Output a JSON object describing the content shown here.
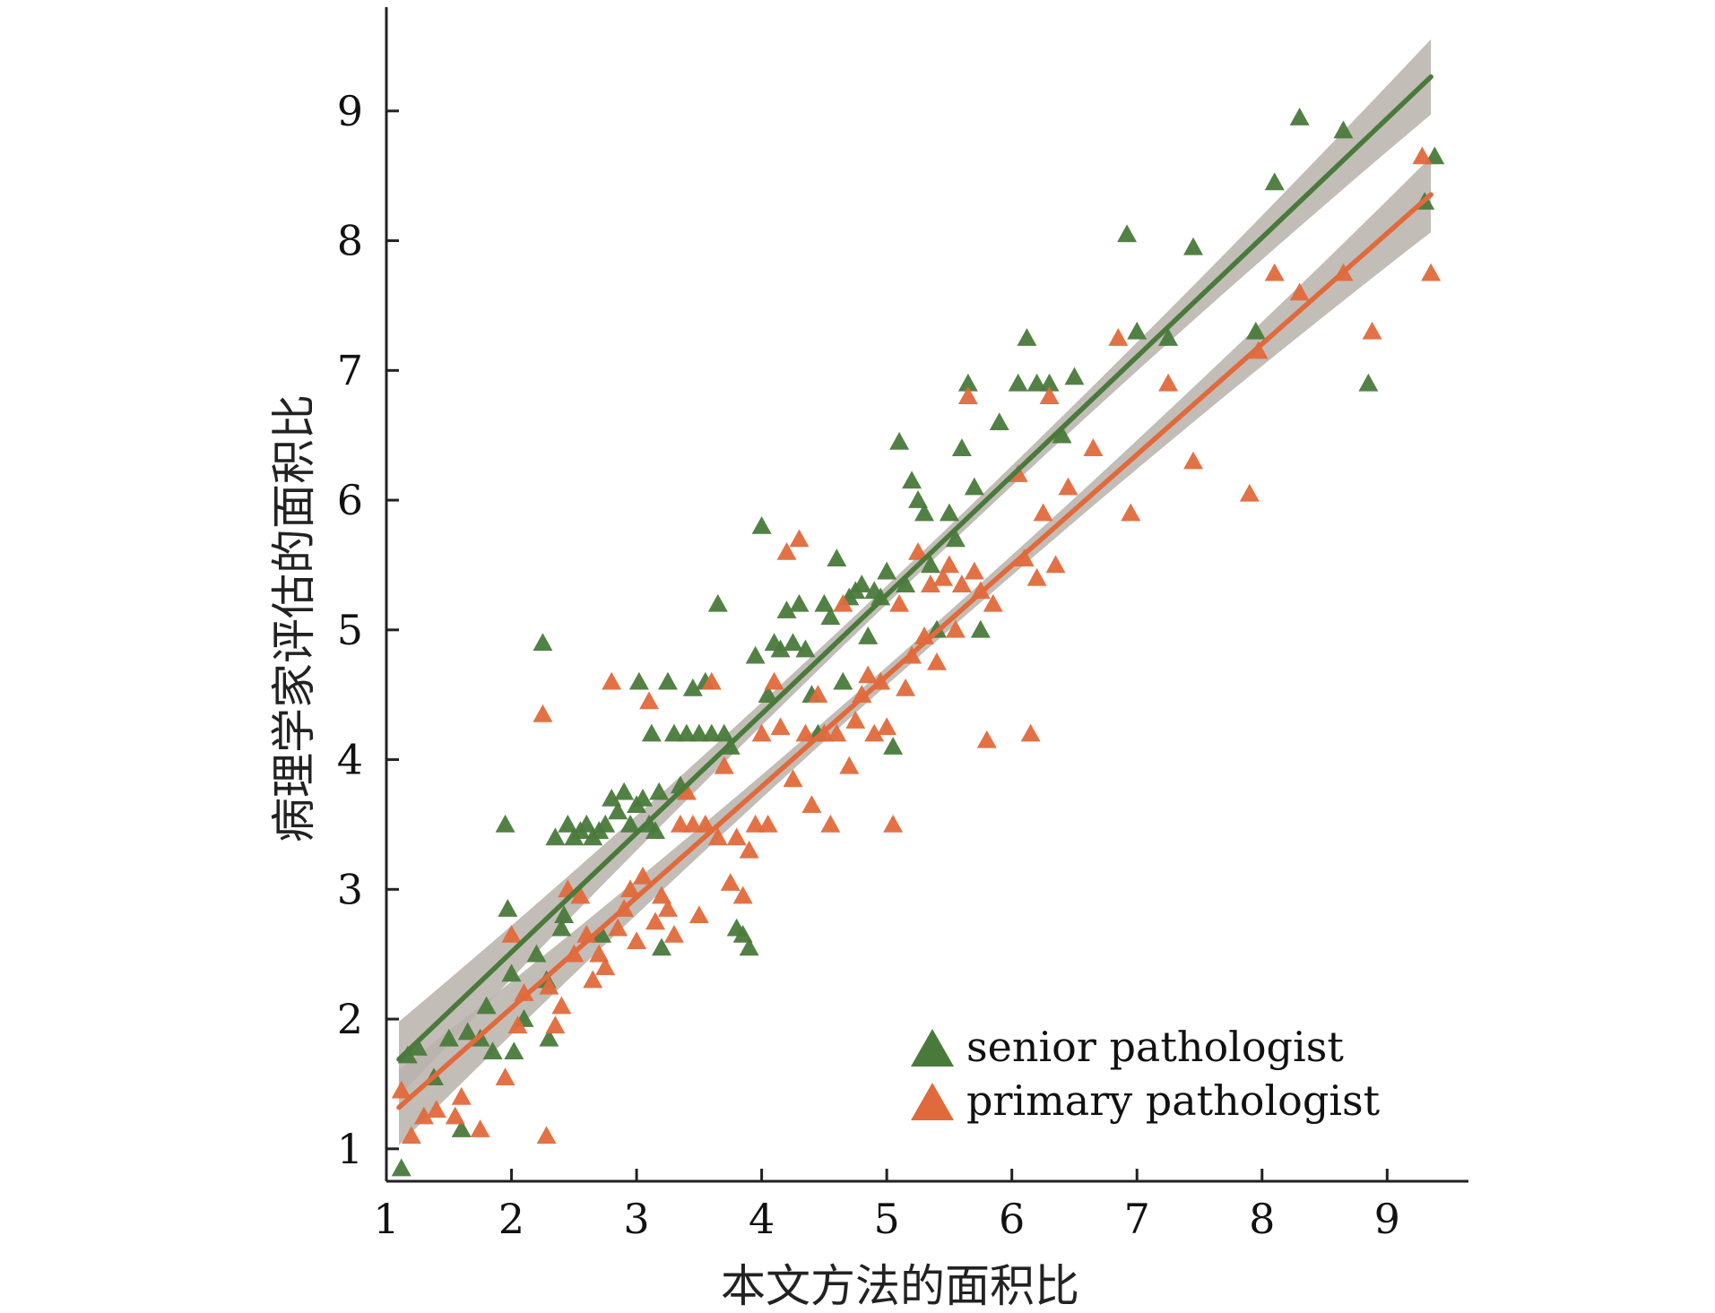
{
  "chart_data": {
    "type": "scatter",
    "title": "",
    "xlabel": "本文方法的面积比",
    "ylabel": "病理学家评估的面积比",
    "xlim": [
      1,
      9.65
    ],
    "ylim": [
      0.75,
      9.8
    ],
    "xticks": [
      "1",
      "2",
      "3",
      "4",
      "5",
      "6",
      "7",
      "8",
      "9"
    ],
    "yticks": [
      "1",
      "2",
      "3",
      "4",
      "5",
      "6",
      "7",
      "8",
      "9"
    ],
    "grid": false,
    "legend_position": "bottom-right",
    "series": [
      {
        "name": "senior pathologist",
        "color": "#4a7a3b",
        "marker": "triangle",
        "fit": {
          "slope": 0.918,
          "intercept": 0.68,
          "x_range": [
            1.1,
            9.35
          ]
        },
        "points": [
          [
            1.12,
            0.85
          ],
          [
            1.17,
            1.72
          ],
          [
            1.25,
            1.78
          ],
          [
            1.38,
            1.55
          ],
          [
            1.5,
            1.85
          ],
          [
            1.6,
            1.15
          ],
          [
            1.65,
            1.9
          ],
          [
            1.75,
            1.85
          ],
          [
            1.8,
            2.1
          ],
          [
            1.85,
            1.75
          ],
          [
            1.95,
            3.5
          ],
          [
            1.97,
            2.85
          ],
          [
            2.0,
            2.35
          ],
          [
            2.02,
            1.75
          ],
          [
            2.1,
            2.0
          ],
          [
            2.2,
            2.5
          ],
          [
            2.25,
            4.9
          ],
          [
            2.28,
            2.3
          ],
          [
            2.3,
            1.85
          ],
          [
            2.35,
            3.4
          ],
          [
            2.4,
            2.7
          ],
          [
            2.42,
            2.8
          ],
          [
            2.45,
            3.5
          ],
          [
            2.5,
            3.4
          ],
          [
            2.55,
            3.45
          ],
          [
            2.6,
            3.5
          ],
          [
            2.65,
            3.4
          ],
          [
            2.7,
            3.45
          ],
          [
            2.72,
            2.65
          ],
          [
            2.75,
            3.5
          ],
          [
            2.8,
            3.7
          ],
          [
            2.85,
            3.6
          ],
          [
            2.9,
            3.75
          ],
          [
            2.95,
            3.5
          ],
          [
            3.0,
            3.65
          ],
          [
            3.02,
            4.6
          ],
          [
            3.05,
            3.7
          ],
          [
            3.1,
            3.5
          ],
          [
            3.12,
            4.2
          ],
          [
            3.15,
            3.45
          ],
          [
            3.18,
            3.75
          ],
          [
            3.2,
            2.55
          ],
          [
            3.25,
            4.6
          ],
          [
            3.3,
            4.2
          ],
          [
            3.35,
            3.8
          ],
          [
            3.4,
            4.2
          ],
          [
            3.45,
            4.55
          ],
          [
            3.5,
            4.2
          ],
          [
            3.55,
            4.6
          ],
          [
            3.6,
            4.2
          ],
          [
            3.65,
            5.2
          ],
          [
            3.7,
            4.2
          ],
          [
            3.75,
            4.1
          ],
          [
            3.8,
            2.7
          ],
          [
            3.85,
            2.65
          ],
          [
            3.9,
            2.55
          ],
          [
            3.95,
            4.8
          ],
          [
            4.0,
            5.8
          ],
          [
            4.05,
            4.5
          ],
          [
            4.1,
            4.9
          ],
          [
            4.15,
            4.85
          ],
          [
            4.2,
            5.15
          ],
          [
            4.25,
            4.9
          ],
          [
            4.3,
            5.2
          ],
          [
            4.35,
            4.85
          ],
          [
            4.4,
            4.5
          ],
          [
            4.45,
            4.2
          ],
          [
            4.5,
            5.2
          ],
          [
            4.55,
            5.1
          ],
          [
            4.6,
            5.55
          ],
          [
            4.65,
            4.6
          ],
          [
            4.7,
            5.25
          ],
          [
            4.75,
            5.3
          ],
          [
            4.8,
            5.35
          ],
          [
            4.85,
            4.95
          ],
          [
            4.9,
            5.3
          ],
          [
            4.95,
            5.25
          ],
          [
            5.0,
            5.45
          ],
          [
            5.05,
            4.1
          ],
          [
            5.1,
            6.45
          ],
          [
            5.15,
            5.35
          ],
          [
            5.2,
            6.15
          ],
          [
            5.25,
            6.0
          ],
          [
            5.3,
            5.9
          ],
          [
            5.35,
            5.5
          ],
          [
            5.4,
            5.0
          ],
          [
            5.5,
            5.9
          ],
          [
            5.55,
            5.7
          ],
          [
            5.6,
            6.4
          ],
          [
            5.65,
            6.9
          ],
          [
            5.7,
            6.1
          ],
          [
            5.75,
            5.0
          ],
          [
            5.9,
            6.6
          ],
          [
            6.05,
            6.9
          ],
          [
            6.12,
            7.25
          ],
          [
            6.2,
            6.9
          ],
          [
            6.3,
            6.9
          ],
          [
            6.4,
            6.5
          ],
          [
            6.5,
            6.95
          ],
          [
            6.92,
            8.05
          ],
          [
            7.0,
            7.3
          ],
          [
            7.25,
            7.25
          ],
          [
            7.45,
            7.95
          ],
          [
            7.95,
            7.3
          ],
          [
            8.1,
            8.45
          ],
          [
            8.3,
            8.95
          ],
          [
            8.65,
            8.85
          ],
          [
            8.85,
            6.9
          ],
          [
            9.3,
            8.3
          ],
          [
            9.38,
            8.65
          ]
        ]
      },
      {
        "name": "primary pathologist",
        "color": "#e06a3c",
        "marker": "triangle",
        "fit": {
          "slope": 0.853,
          "intercept": 0.38,
          "x_range": [
            1.1,
            9.35
          ]
        },
        "points": [
          [
            1.12,
            1.45
          ],
          [
            1.2,
            1.1
          ],
          [
            1.3,
            1.25
          ],
          [
            1.4,
            1.3
          ],
          [
            1.55,
            1.25
          ],
          [
            1.6,
            1.4
          ],
          [
            1.75,
            1.15
          ],
          [
            1.95,
            1.55
          ],
          [
            2.0,
            2.65
          ],
          [
            2.05,
            1.95
          ],
          [
            2.1,
            2.2
          ],
          [
            2.25,
            4.35
          ],
          [
            2.28,
            1.1
          ],
          [
            2.3,
            2.25
          ],
          [
            2.35,
            1.95
          ],
          [
            2.4,
            2.1
          ],
          [
            2.45,
            3.0
          ],
          [
            2.5,
            2.5
          ],
          [
            2.55,
            2.95
          ],
          [
            2.6,
            2.65
          ],
          [
            2.65,
            2.3
          ],
          [
            2.7,
            2.5
          ],
          [
            2.75,
            2.4
          ],
          [
            2.8,
            4.6
          ],
          [
            2.85,
            2.7
          ],
          [
            2.9,
            2.85
          ],
          [
            2.95,
            3.0
          ],
          [
            3.0,
            2.6
          ],
          [
            3.05,
            3.1
          ],
          [
            3.1,
            4.45
          ],
          [
            3.15,
            2.75
          ],
          [
            3.2,
            2.95
          ],
          [
            3.25,
            2.85
          ],
          [
            3.3,
            2.65
          ],
          [
            3.35,
            3.5
          ],
          [
            3.4,
            3.75
          ],
          [
            3.45,
            3.5
          ],
          [
            3.5,
            2.8
          ],
          [
            3.55,
            3.5
          ],
          [
            3.6,
            4.6
          ],
          [
            3.65,
            3.4
          ],
          [
            3.7,
            3.95
          ],
          [
            3.75,
            3.05
          ],
          [
            3.8,
            3.4
          ],
          [
            3.85,
            2.95
          ],
          [
            3.9,
            3.3
          ],
          [
            3.95,
            3.5
          ],
          [
            4.0,
            4.2
          ],
          [
            4.05,
            3.5
          ],
          [
            4.1,
            4.6
          ],
          [
            4.15,
            4.25
          ],
          [
            4.2,
            5.6
          ],
          [
            4.25,
            3.85
          ],
          [
            4.3,
            5.7
          ],
          [
            4.35,
            4.2
          ],
          [
            4.4,
            3.65
          ],
          [
            4.45,
            4.5
          ],
          [
            4.5,
            4.2
          ],
          [
            4.55,
            3.5
          ],
          [
            4.6,
            4.2
          ],
          [
            4.65,
            5.2
          ],
          [
            4.7,
            3.95
          ],
          [
            4.75,
            4.3
          ],
          [
            4.8,
            4.5
          ],
          [
            4.85,
            4.65
          ],
          [
            4.9,
            4.2
          ],
          [
            4.95,
            4.6
          ],
          [
            5.0,
            4.25
          ],
          [
            5.05,
            3.5
          ],
          [
            5.1,
            5.2
          ],
          [
            5.15,
            4.55
          ],
          [
            5.2,
            4.8
          ],
          [
            5.25,
            5.6
          ],
          [
            5.3,
            4.95
          ],
          [
            5.35,
            5.35
          ],
          [
            5.4,
            4.75
          ],
          [
            5.45,
            5.4
          ],
          [
            5.5,
            5.5
          ],
          [
            5.55,
            5.0
          ],
          [
            5.6,
            5.35
          ],
          [
            5.65,
            6.8
          ],
          [
            5.7,
            5.45
          ],
          [
            5.75,
            5.3
          ],
          [
            5.8,
            4.15
          ],
          [
            5.85,
            5.2
          ],
          [
            6.05,
            6.2
          ],
          [
            6.1,
            5.55
          ],
          [
            6.15,
            4.2
          ],
          [
            6.2,
            5.4
          ],
          [
            6.25,
            5.9
          ],
          [
            6.3,
            6.8
          ],
          [
            6.35,
            5.5
          ],
          [
            6.45,
            6.1
          ],
          [
            6.65,
            6.4
          ],
          [
            6.85,
            7.25
          ],
          [
            6.95,
            5.9
          ],
          [
            7.25,
            6.9
          ],
          [
            7.45,
            6.3
          ],
          [
            7.9,
            6.05
          ],
          [
            7.97,
            7.15
          ],
          [
            8.1,
            7.75
          ],
          [
            8.3,
            7.6
          ],
          [
            8.65,
            7.75
          ],
          [
            8.88,
            7.3
          ],
          [
            9.28,
            8.65
          ],
          [
            9.35,
            7.75
          ]
        ]
      }
    ]
  }
}
